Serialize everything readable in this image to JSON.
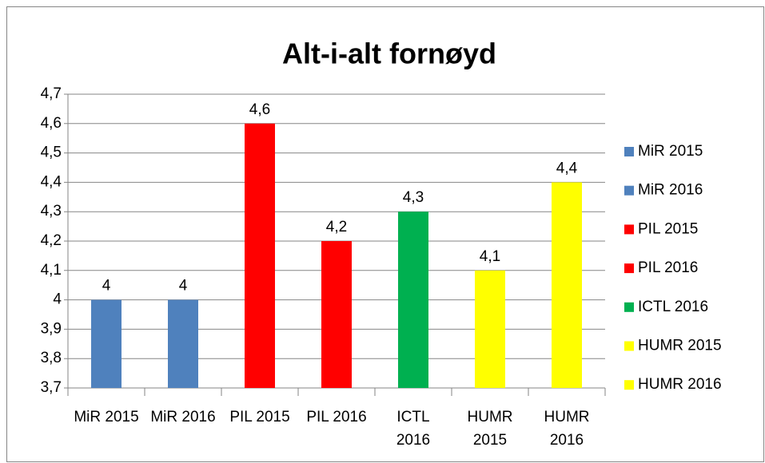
{
  "chart_data": {
    "type": "bar",
    "title": "Alt-i-alt fornøyd",
    "categories": [
      "MiR 2015",
      "MiR 2016",
      "PIL 2015",
      "PIL 2016",
      "ICTL 2016",
      "HUMR 2015",
      "HUMR 2016"
    ],
    "values": [
      4,
      4,
      4.6,
      4.2,
      4.3,
      4.1,
      4.4
    ],
    "value_labels": [
      "4",
      "4",
      "4,6",
      "4,2",
      "4,3",
      "4,1",
      "4,4"
    ],
    "colors": [
      "#4f81bd",
      "#4f81bd",
      "#ff0000",
      "#ff0000",
      "#00b050",
      "#ffff00",
      "#ffff00"
    ],
    "ylim": [
      3.7,
      4.7
    ],
    "yticks": [
      {
        "value": 3.7,
        "label": "3,7"
      },
      {
        "value": 3.8,
        "label": "3,8"
      },
      {
        "value": 3.9,
        "label": "3,9"
      },
      4,
      {
        "value": 4.1,
        "label": "4,1"
      },
      {
        "value": 4.2,
        "label": "4,2"
      },
      {
        "value": 4.3,
        "label": "4,3"
      },
      {
        "value": 4.4,
        "label": "4,4"
      },
      {
        "value": 4.5,
        "label": "4,5"
      },
      {
        "value": 4.6,
        "label": "4,6"
      },
      {
        "value": 4.7,
        "label": "4,7"
      }
    ],
    "grid": true,
    "legend": "right"
  }
}
